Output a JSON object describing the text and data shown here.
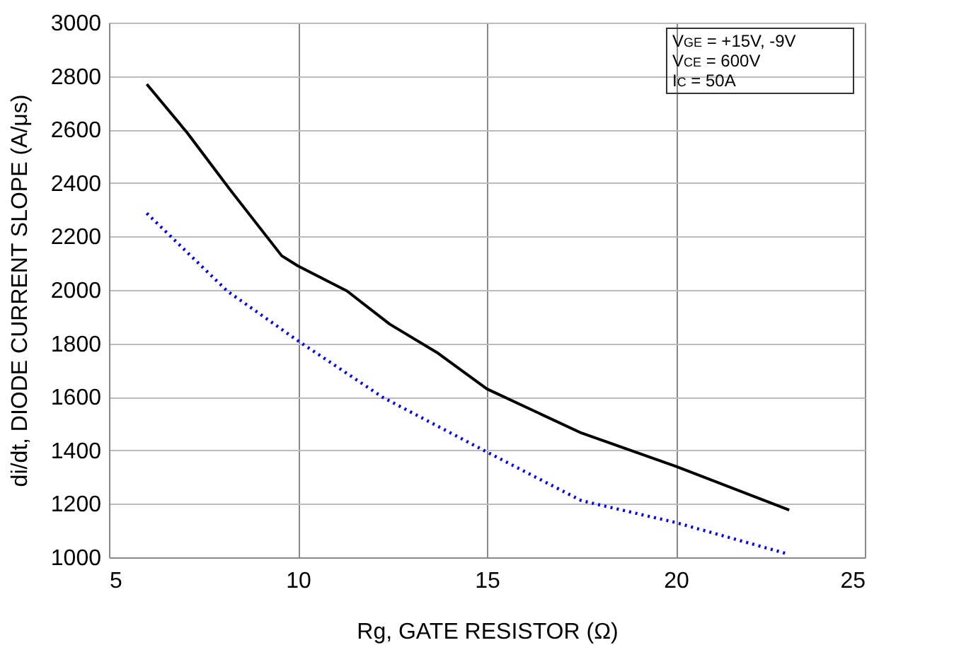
{
  "chart_data": {
    "type": "line",
    "xlabel": "Rg, GATE RESISTOR (Ω)",
    "ylabel": "di/dt, DIODE CURRENT SLOPE (A/μs)",
    "annotations": [
      "V$_{GE}$ = +15V, -9V",
      "V$_{CE}$ = 600V",
      "I$_{C}$ = 50A"
    ],
    "series": [
      {
        "color": "#000000",
        "line_style": "solid",
        "x": [
          6,
          7.07,
          8.2,
          9.57,
          10,
          11.3,
          12.43,
          13.68,
          15,
          17.5,
          20,
          23
        ],
        "values": [
          2770,
          2588,
          2376,
          2128,
          2090,
          1996,
          1872,
          1766,
          1630,
          1465,
          1340,
          1177
        ]
      },
      {
        "color": "#0000ff",
        "line_style": "dotted",
        "x": [
          6,
          8.13,
          10,
          12.25,
          15,
          17.5,
          20,
          22.9
        ],
        "values": [
          2287,
          1996,
          1810,
          1598,
          1394,
          1212,
          1130,
          1015
        ]
      }
    ],
    "xlim": [
      5,
      25
    ],
    "xticks": [
      5,
      10,
      15,
      20,
      25
    ],
    "ylim": [
      1000,
      3000
    ],
    "yticks": [
      1000,
      1200,
      1400,
      1600,
      1800,
      2000,
      2200,
      2400,
      2600,
      2800,
      3000
    ],
    "grid": true
  }
}
